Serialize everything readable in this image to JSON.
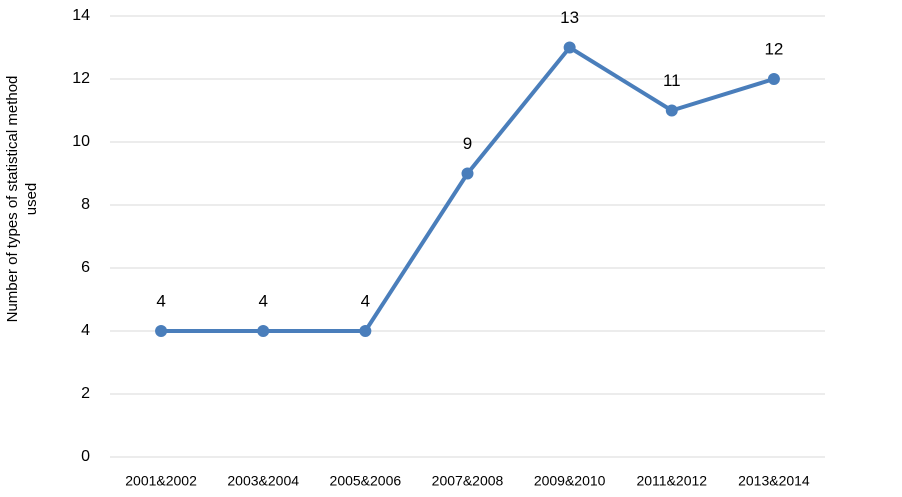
{
  "chart_data": {
    "type": "line",
    "y_label": "Number of types of statistical method used",
    "categories": [
      "2001&2002",
      "2003&2004",
      "2005&2006",
      "2007&2008",
      "2009&2010",
      "2011&2012",
      "2013&2014"
    ],
    "values": [
      4,
      4,
      4,
      9,
      13,
      11,
      12
    ],
    "color": "#4a7ebb",
    "ylim": [
      0,
      14
    ],
    "yticks": [
      0,
      2,
      4,
      6,
      8,
      10,
      12,
      14
    ],
    "grid": true
  }
}
